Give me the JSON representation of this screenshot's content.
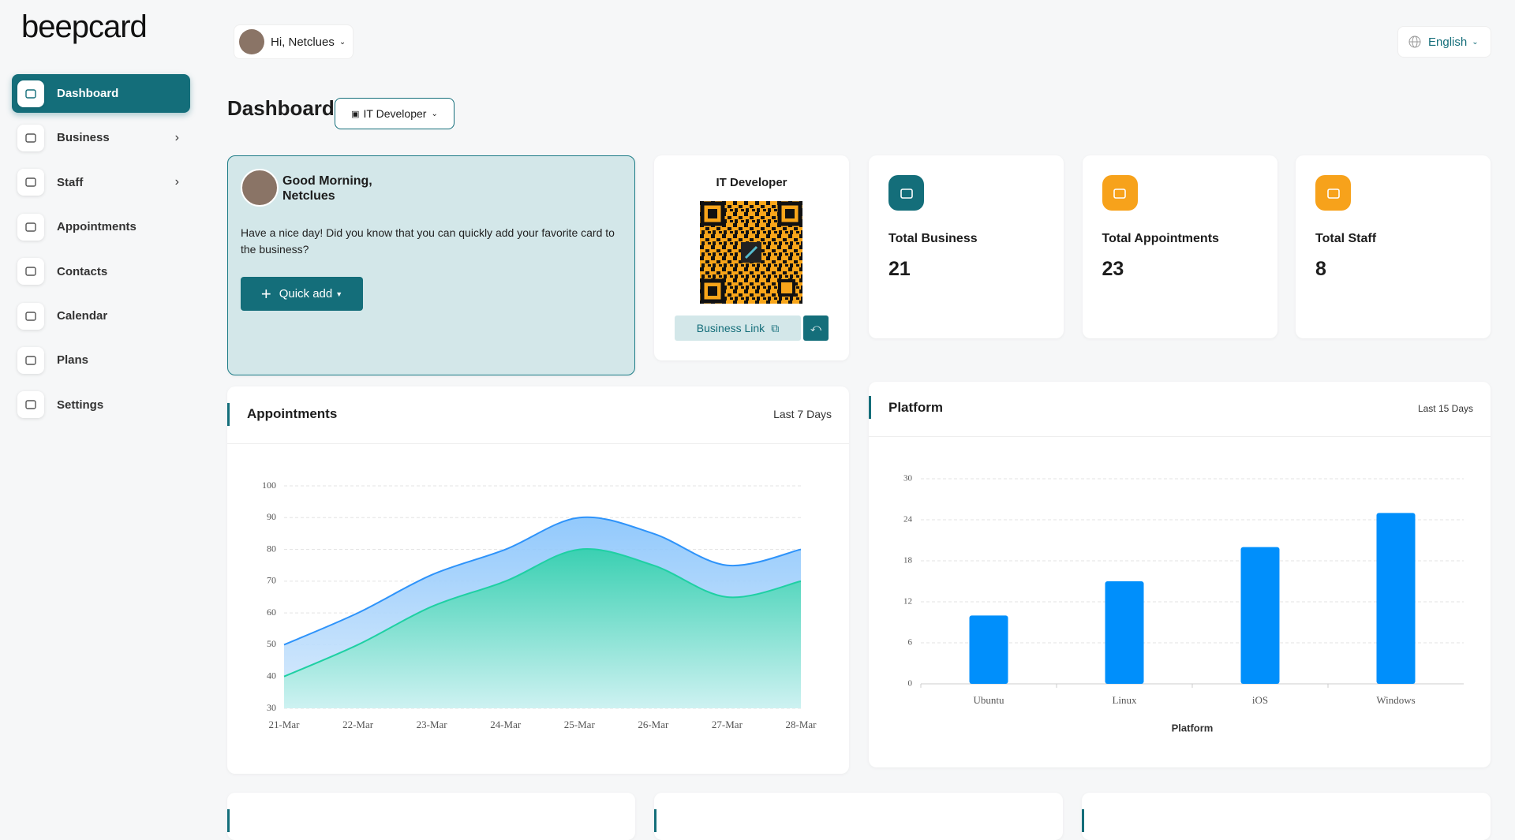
{
  "sidebar": {
    "logo": "beepcard",
    "menu": [
      "Dashboard",
      "Business",
      "Staff",
      "Appointments",
      "Contacts",
      "Calendar",
      "Plans",
      "Settings"
    ]
  },
  "header": {
    "greeting": "Hi, Netclues",
    "language": "English"
  },
  "page_title": "Dashboard",
  "profile": "IT Developer",
  "welcome": {
    "title_line1": "Good Morning,",
    "title_line2": "Netclues",
    "message": "Have a nice day! Did you know that you can quickly add your favorite card to the business?",
    "button": "Quick add"
  },
  "qr_card": {
    "title": "IT Developer",
    "link": "Business Link"
  },
  "stats": [
    {
      "label": "Total Business",
      "value": 21
    },
    {
      "label": "Total Appointments",
      "value": 23
    },
    {
      "label": "Total Staff",
      "value": 8
    }
  ],
  "chart_data": [
    {
      "type": "area",
      "title": "Appointments",
      "subtitle": "Last 7 Days",
      "categories": [
        "21-Mar",
        "22-Mar",
        "23-Mar",
        "24-Mar",
        "25-Mar",
        "26-Mar",
        "27-Mar",
        "28-Mar"
      ],
      "series": [
        {
          "color": "#2e93fa",
          "values": [
            50,
            60,
            72,
            80,
            90,
            85,
            75,
            80
          ]
        },
        {
          "color": "#1fd0a3",
          "values": [
            40,
            50,
            62,
            70,
            80,
            75,
            65,
            70
          ]
        }
      ],
      "ylim": [
        30,
        100
      ],
      "yticks": [
        30,
        40,
        50,
        60,
        70,
        80,
        90,
        100
      ],
      "grid": true
    },
    {
      "type": "bar",
      "title": "Platform",
      "subtitle": "Last 15 Days",
      "x_label": "Platform",
      "categories": [
        "Ubuntu",
        "Linux",
        "iOS",
        "Windows"
      ],
      "values": [
        10,
        15,
        20,
        25
      ],
      "color": "#008ffb",
      "ylim": [
        0,
        30
      ],
      "yticks": [
        0,
        6,
        12,
        18,
        24,
        30
      ],
      "grid": true
    }
  ]
}
